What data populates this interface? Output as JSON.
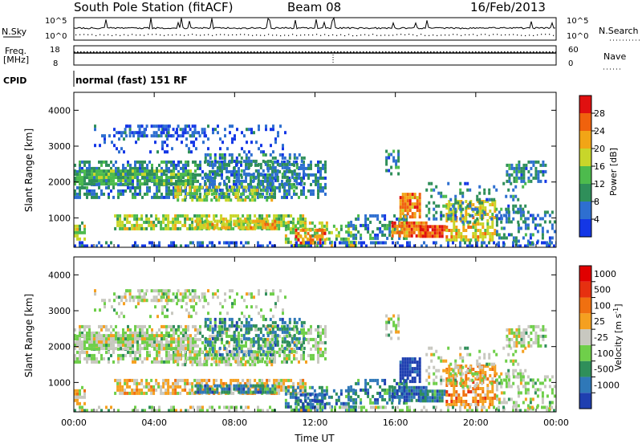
{
  "header": {
    "station": "South Pole Station (fitACF)",
    "beam": "Beam 08",
    "date": "16/Feb/2013"
  },
  "nsky": {
    "label": "N.Sky",
    "ticks": [
      "10^5",
      "10^0"
    ]
  },
  "nsearch": {
    "label": "N.Search",
    "ticks": [
      "10^5",
      "10^0"
    ]
  },
  "freq": {
    "label_line1": "Freq.",
    "label_line2": "[MHz]",
    "ticks": [
      "18",
      "8"
    ]
  },
  "nave": {
    "label": "Nave",
    "ticks": [
      "60",
      "0"
    ]
  },
  "cpid": {
    "label": "CPID",
    "text": "normal (fast) 151 RF"
  },
  "chart_data": [
    {
      "type": "heatmap",
      "name": "power",
      "xlabel": "",
      "ylabel": "Slant Range [km]",
      "y_ticks": [
        "1000",
        "2000",
        "3000",
        "4000"
      ],
      "ylim": [
        180,
        4500
      ],
      "xlim_hours": [
        0,
        24
      ],
      "colorbar": {
        "label": "Power [dB]",
        "ticks": [
          "4",
          "8",
          "12",
          "16",
          "20",
          "24",
          "28"
        ],
        "colors": [
          "#1437e6",
          "#2e6fd0",
          "#2f8f5a",
          "#4dbb4d",
          "#c8d62a",
          "#f2a516",
          "#f0620d",
          "#e01010"
        ]
      }
    },
    {
      "type": "heatmap",
      "name": "velocity",
      "xlabel": "Time UT",
      "ylabel": "Slant Range [km]",
      "x_ticks": [
        "00:00",
        "04:00",
        "08:00",
        "12:00",
        "16:00",
        "20:00",
        "00:00"
      ],
      "y_ticks": [
        "1000",
        "2000",
        "3000",
        "4000"
      ],
      "ylim": [
        180,
        4500
      ],
      "xlim_hours": [
        0,
        24
      ],
      "colorbar": {
        "label": "Velocity [m s",
        "label_sup": "-1",
        "label_end": "]",
        "ticks": [
          "1000",
          "500",
          "100",
          "25",
          "-25",
          "-100",
          "-500",
          "-1000"
        ],
        "colors": [
          "#1f3fb0",
          "#2f78b8",
          "#2f8f5a",
          "#6fcf4a",
          "#c8c8c0",
          "#f5a020",
          "#f07010",
          "#e63010",
          "#e00000"
        ]
      }
    }
  ]
}
